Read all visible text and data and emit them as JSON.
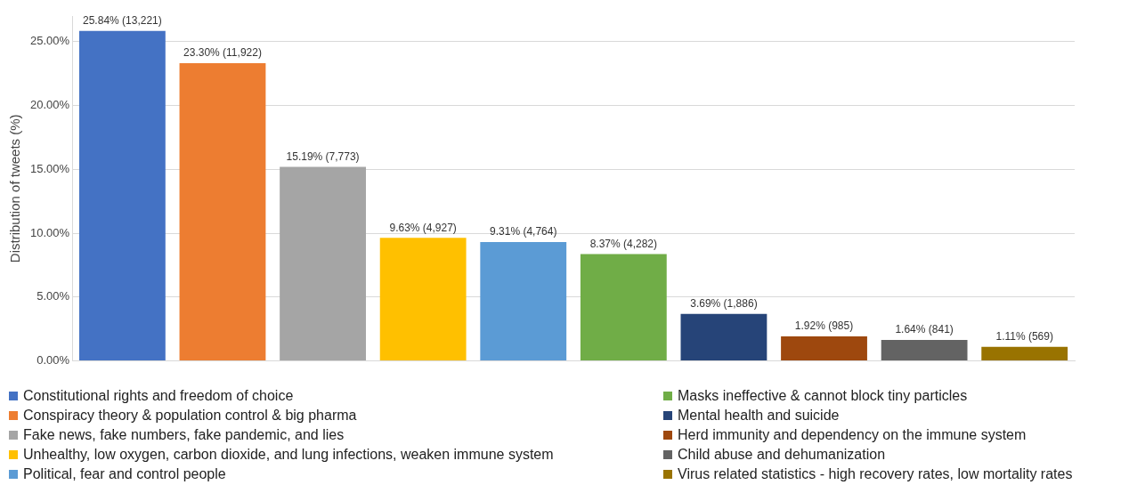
{
  "chart_data": {
    "type": "bar",
    "ylabel": "Distribution of tweets (%)",
    "categories": [
      null,
      null,
      null,
      null,
      null,
      null,
      null,
      null,
      null,
      null
    ],
    "ylim": [
      0,
      27
    ],
    "yticks": [
      {
        "value": 0,
        "label": "0.00%"
      },
      {
        "value": 5,
        "label": "5.00%"
      },
      {
        "value": 10,
        "label": "10.00%"
      },
      {
        "value": 15,
        "label": "15.00%"
      },
      {
        "value": 20,
        "label": "20.00%"
      },
      {
        "value": 25,
        "label": "25.00%"
      }
    ],
    "grid": "y",
    "legend": "bottom",
    "series": [
      {
        "name": "Constitutional rights and freedom of choice",
        "color": "#4472c4",
        "values": [
          25.84,
          null,
          null,
          null,
          null,
          null,
          null,
          null,
          null,
          null
        ],
        "value_labels": [
          "25.84% (13,221)",
          null,
          null,
          null,
          null,
          null,
          null,
          null,
          null,
          null
        ]
      },
      {
        "name": "Conspiracy theory & population control & big pharma",
        "color": "#ed7d31",
        "values": [
          null,
          23.3,
          null,
          null,
          null,
          null,
          null,
          null,
          null,
          null
        ],
        "value_labels": [
          null,
          "23.30% (11,922)",
          null,
          null,
          null,
          null,
          null,
          null,
          null,
          null
        ]
      },
      {
        "name": "Fake news, fake numbers, fake pandemic, and lies",
        "color": "#a5a5a5",
        "values": [
          null,
          null,
          15.19,
          null,
          null,
          null,
          null,
          null,
          null,
          null
        ],
        "value_labels": [
          null,
          null,
          "15.19% (7,773)",
          null,
          null,
          null,
          null,
          null,
          null,
          null
        ]
      },
      {
        "name": "Unhealthy, low oxygen, carbon dioxide, and lung infections, weaken immune system",
        "color": "#ffc000",
        "values": [
          null,
          null,
          null,
          9.63,
          null,
          null,
          null,
          null,
          null,
          null
        ],
        "value_labels": [
          null,
          null,
          null,
          "9.63% (4,927)",
          null,
          null,
          null,
          null,
          null,
          null
        ]
      },
      {
        "name": "Political, fear and control people",
        "color": "#5b9bd5",
        "values": [
          null,
          null,
          null,
          null,
          9.31,
          null,
          null,
          null,
          null,
          null
        ],
        "value_labels": [
          null,
          null,
          null,
          null,
          "9.31% (4,764)",
          null,
          null,
          null,
          null,
          null
        ]
      },
      {
        "name": "Masks ineffective & cannot block tiny particles",
        "color": "#70ad47",
        "values": [
          null,
          null,
          null,
          null,
          null,
          8.37,
          null,
          null,
          null,
          null
        ],
        "value_labels": [
          null,
          null,
          null,
          null,
          null,
          "8.37% (4,282)",
          null,
          null,
          null,
          null
        ]
      },
      {
        "name": "Mental health and suicide",
        "color": "#264478",
        "values": [
          null,
          null,
          null,
          null,
          null,
          null,
          3.69,
          null,
          null,
          null
        ],
        "value_labels": [
          null,
          null,
          null,
          null,
          null,
          null,
          "3.69% (1,886)",
          null,
          null,
          null
        ]
      },
      {
        "name": "Herd immunity and dependency on the immune system",
        "color": "#9e480e",
        "values": [
          null,
          null,
          null,
          null,
          null,
          null,
          null,
          1.92,
          null,
          null
        ],
        "value_labels": [
          null,
          null,
          null,
          null,
          null,
          null,
          null,
          "1.92% (985)",
          null,
          null
        ]
      },
      {
        "name": "Child abuse and dehumanization",
        "color": "#636363",
        "values": [
          null,
          null,
          null,
          null,
          null,
          null,
          null,
          null,
          1.64,
          null
        ],
        "value_labels": [
          null,
          null,
          null,
          null,
          null,
          null,
          null,
          null,
          "1.64% (841)",
          null
        ]
      },
      {
        "name": "Virus related statistics - high recovery rates, low mortality rates",
        "color": "#997300",
        "values": [
          null,
          null,
          null,
          null,
          null,
          null,
          null,
          null,
          null,
          1.11
        ],
        "value_labels": [
          null,
          null,
          null,
          null,
          null,
          null,
          null,
          null,
          null,
          "1.11% (569)"
        ]
      }
    ]
  }
}
